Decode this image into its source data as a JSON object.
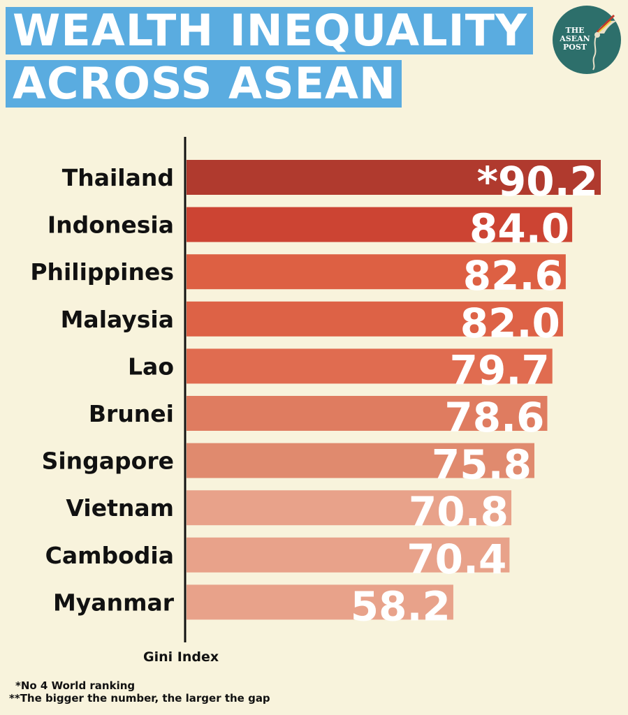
{
  "title": {
    "line1": "WEALTH INEQUALITY",
    "line2": "ACROSS ASEAN"
  },
  "logo": {
    "text_line1": "THE",
    "text_line2": "ASEAN",
    "text_line3": "POST",
    "icon": "hummingbird-icon",
    "color": "#2d6f6b"
  },
  "chart_data": {
    "type": "bar",
    "orientation": "horizontal",
    "categories": [
      "Thailand",
      "Indonesia",
      "Philippines",
      "Malaysia",
      "Lao",
      "Brunei",
      "Singapore",
      "Vietnam",
      "Cambodia",
      "Myanmar"
    ],
    "values": [
      90.2,
      84.0,
      82.6,
      82.0,
      79.7,
      78.6,
      75.8,
      70.8,
      70.4,
      58.2
    ],
    "value_labels": [
      "*90.2",
      "84.0",
      "82.6",
      "82.0",
      "79.7",
      "78.6",
      "75.8",
      "70.8",
      "70.4",
      "58.2"
    ],
    "colors": [
      "#b03a2e",
      "#cc4433",
      "#dd6043",
      "#dd6246",
      "#e06c50",
      "#df7c60",
      "#e08a6e",
      "#e8a28a",
      "#e8a28a",
      "#e8a28a"
    ],
    "xlabel": "Gini Index",
    "xlim": [
      0,
      90.2
    ],
    "grid": false
  },
  "footnotes": {
    "note1": "*No 4 World ranking",
    "note2": "**The bigger the number, the larger the gap"
  }
}
